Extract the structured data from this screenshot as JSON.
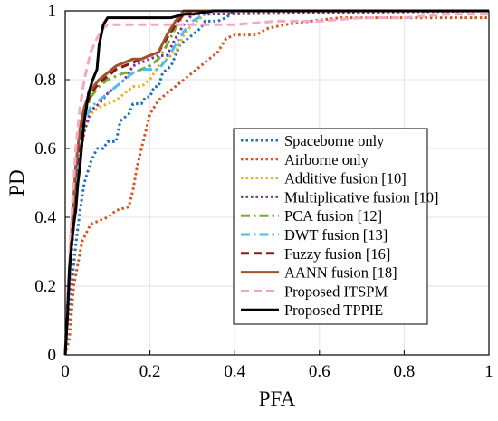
{
  "chart_data": {
    "type": "line",
    "title": "",
    "xlabel": "PFA",
    "ylabel": "PD",
    "xlim": [
      0,
      1
    ],
    "ylim": [
      0,
      1
    ],
    "x_ticks": [
      0,
      0.2,
      0.4,
      0.6,
      0.8,
      1
    ],
    "y_ticks": [
      0,
      0.2,
      0.4,
      0.6,
      0.8,
      1
    ],
    "x_tick_labels": [
      "0",
      "0.2",
      "0.4",
      "0.6",
      "0.8",
      "1"
    ],
    "y_tick_labels": [
      "0",
      "0.2",
      "0.4",
      "0.6",
      "0.8",
      "1"
    ],
    "grid": true,
    "legend_position": "bottom-right",
    "series": [
      {
        "name": "Spaceborne only",
        "color": "#1f6fbf",
        "dash": "dotted",
        "points": [
          [
            0,
            0
          ],
          [
            0.005,
            0.08
          ],
          [
            0.015,
            0.2
          ],
          [
            0.025,
            0.32
          ],
          [
            0.035,
            0.42
          ],
          [
            0.045,
            0.5
          ],
          [
            0.06,
            0.56
          ],
          [
            0.075,
            0.6
          ],
          [
            0.09,
            0.6
          ],
          [
            0.1,
            0.62
          ],
          [
            0.12,
            0.62
          ],
          [
            0.13,
            0.68
          ],
          [
            0.15,
            0.7
          ],
          [
            0.16,
            0.73
          ],
          [
            0.18,
            0.73
          ],
          [
            0.19,
            0.75
          ],
          [
            0.2,
            0.75
          ],
          [
            0.21,
            0.78
          ],
          [
            0.22,
            0.78
          ],
          [
            0.23,
            0.82
          ],
          [
            0.25,
            0.84
          ],
          [
            0.27,
            0.9
          ],
          [
            0.3,
            0.93
          ],
          [
            0.32,
            0.95
          ],
          [
            0.33,
            0.97
          ],
          [
            0.36,
            0.97
          ],
          [
            0.38,
            0.98
          ],
          [
            0.4,
            1
          ],
          [
            1,
            1
          ]
        ]
      },
      {
        "name": "Airborne only",
        "color": "#d95319",
        "dash": "dotted",
        "points": [
          [
            0,
            0
          ],
          [
            0.01,
            0.05
          ],
          [
            0.02,
            0.2
          ],
          [
            0.04,
            0.33
          ],
          [
            0.06,
            0.38
          ],
          [
            0.1,
            0.4
          ],
          [
            0.12,
            0.42
          ],
          [
            0.15,
            0.43
          ],
          [
            0.16,
            0.48
          ],
          [
            0.17,
            0.55
          ],
          [
            0.18,
            0.6
          ],
          [
            0.19,
            0.65
          ],
          [
            0.2,
            0.7
          ],
          [
            0.22,
            0.74
          ],
          [
            0.24,
            0.76
          ],
          [
            0.26,
            0.78
          ],
          [
            0.28,
            0.8
          ],
          [
            0.3,
            0.82
          ],
          [
            0.32,
            0.84
          ],
          [
            0.34,
            0.86
          ],
          [
            0.36,
            0.88
          ],
          [
            0.38,
            0.92
          ],
          [
            0.4,
            0.93
          ],
          [
            0.45,
            0.93
          ],
          [
            0.48,
            0.95
          ],
          [
            0.52,
            0.96
          ],
          [
            0.58,
            0.97
          ],
          [
            0.65,
            0.98
          ],
          [
            1,
            0.98
          ]
        ]
      },
      {
        "name": "Additive fusion [10]",
        "color": "#edb120",
        "dash": "dotted",
        "points": [
          [
            0,
            0
          ],
          [
            0.005,
            0.1
          ],
          [
            0.015,
            0.28
          ],
          [
            0.025,
            0.45
          ],
          [
            0.035,
            0.58
          ],
          [
            0.045,
            0.65
          ],
          [
            0.06,
            0.7
          ],
          [
            0.08,
            0.72
          ],
          [
            0.1,
            0.73
          ],
          [
            0.12,
            0.74
          ],
          [
            0.14,
            0.76
          ],
          [
            0.16,
            0.78
          ],
          [
            0.18,
            0.78
          ],
          [
            0.2,
            0.8
          ],
          [
            0.22,
            0.84
          ],
          [
            0.24,
            0.86
          ],
          [
            0.26,
            0.88
          ],
          [
            0.28,
            0.93
          ],
          [
            0.3,
            0.96
          ],
          [
            0.33,
            0.99
          ],
          [
            1,
            1
          ]
        ]
      },
      {
        "name": "Multiplicative fusion [10]",
        "color": "#7e2f8e",
        "dash": "dotted",
        "points": [
          [
            0,
            0
          ],
          [
            0.005,
            0.1
          ],
          [
            0.015,
            0.3
          ],
          [
            0.025,
            0.47
          ],
          [
            0.035,
            0.58
          ],
          [
            0.045,
            0.65
          ],
          [
            0.06,
            0.71
          ],
          [
            0.08,
            0.73
          ],
          [
            0.1,
            0.76
          ],
          [
            0.12,
            0.78
          ],
          [
            0.14,
            0.8
          ],
          [
            0.16,
            0.84
          ],
          [
            0.18,
            0.85
          ],
          [
            0.2,
            0.86
          ],
          [
            0.22,
            0.87
          ],
          [
            0.24,
            0.87
          ],
          [
            0.26,
            0.92
          ],
          [
            0.28,
            0.96
          ],
          [
            0.3,
            0.99
          ],
          [
            1,
            1
          ]
        ]
      },
      {
        "name": "PCA fusion [12]",
        "color": "#77ac30",
        "dash": "dashdot",
        "points": [
          [
            0,
            0
          ],
          [
            0.005,
            0.12
          ],
          [
            0.015,
            0.32
          ],
          [
            0.025,
            0.5
          ],
          [
            0.035,
            0.62
          ],
          [
            0.045,
            0.7
          ],
          [
            0.06,
            0.75
          ],
          [
            0.08,
            0.78
          ],
          [
            0.1,
            0.8
          ],
          [
            0.12,
            0.81
          ],
          [
            0.14,
            0.82
          ],
          [
            0.16,
            0.82
          ],
          [
            0.18,
            0.83
          ],
          [
            0.2,
            0.84
          ],
          [
            0.22,
            0.86
          ],
          [
            0.24,
            0.9
          ],
          [
            0.26,
            0.95
          ],
          [
            0.28,
            0.99
          ],
          [
            0.3,
            1
          ],
          [
            1,
            1
          ]
        ]
      },
      {
        "name": "DWT fusion [13]",
        "color": "#4dbeee",
        "dash": "dashdot",
        "points": [
          [
            0,
            0
          ],
          [
            0.005,
            0.12
          ],
          [
            0.015,
            0.33
          ],
          [
            0.025,
            0.5
          ],
          [
            0.035,
            0.62
          ],
          [
            0.045,
            0.68
          ],
          [
            0.06,
            0.72
          ],
          [
            0.08,
            0.74
          ],
          [
            0.1,
            0.76
          ],
          [
            0.12,
            0.78
          ],
          [
            0.14,
            0.8
          ],
          [
            0.16,
            0.82
          ],
          [
            0.18,
            0.83
          ],
          [
            0.2,
            0.83
          ],
          [
            0.22,
            0.83
          ],
          [
            0.24,
            0.86
          ],
          [
            0.26,
            0.9
          ],
          [
            0.28,
            0.94
          ],
          [
            0.3,
            0.97
          ],
          [
            0.33,
            0.99
          ],
          [
            0.35,
            1
          ],
          [
            1,
            1
          ]
        ]
      },
      {
        "name": "Fuzzy fusion [16]",
        "color": "#8b1a1a",
        "dash": "dashed",
        "points": [
          [
            0,
            0
          ],
          [
            0.005,
            0.12
          ],
          [
            0.015,
            0.34
          ],
          [
            0.025,
            0.52
          ],
          [
            0.035,
            0.63
          ],
          [
            0.045,
            0.7
          ],
          [
            0.06,
            0.76
          ],
          [
            0.08,
            0.79
          ],
          [
            0.1,
            0.81
          ],
          [
            0.12,
            0.83
          ],
          [
            0.14,
            0.84
          ],
          [
            0.16,
            0.85
          ],
          [
            0.18,
            0.86
          ],
          [
            0.2,
            0.87
          ],
          [
            0.22,
            0.88
          ],
          [
            0.24,
            0.92
          ],
          [
            0.26,
            0.96
          ],
          [
            0.28,
            0.99
          ],
          [
            0.3,
            1
          ],
          [
            1,
            1
          ]
        ]
      },
      {
        "name": "AANN fusion [18]",
        "color": "#a0522d",
        "dash": "solid",
        "points": [
          [
            0,
            0
          ],
          [
            0.005,
            0.14
          ],
          [
            0.015,
            0.36
          ],
          [
            0.025,
            0.55
          ],
          [
            0.035,
            0.66
          ],
          [
            0.045,
            0.72
          ],
          [
            0.06,
            0.77
          ],
          [
            0.08,
            0.8
          ],
          [
            0.1,
            0.82
          ],
          [
            0.12,
            0.84
          ],
          [
            0.14,
            0.85
          ],
          [
            0.16,
            0.86
          ],
          [
            0.18,
            0.86
          ],
          [
            0.2,
            0.87
          ],
          [
            0.22,
            0.88
          ],
          [
            0.24,
            0.93
          ],
          [
            0.26,
            0.97
          ],
          [
            0.28,
            1
          ],
          [
            1,
            1
          ]
        ]
      },
      {
        "name": "Proposed ITSPM",
        "color": "#f4a6c8",
        "dash": "dashed",
        "points": [
          [
            0,
            0
          ],
          [
            0.005,
            0.15
          ],
          [
            0.015,
            0.4
          ],
          [
            0.025,
            0.6
          ],
          [
            0.035,
            0.72
          ],
          [
            0.045,
            0.8
          ],
          [
            0.06,
            0.88
          ],
          [
            0.075,
            0.92
          ],
          [
            0.09,
            0.95
          ],
          [
            0.1,
            0.96
          ],
          [
            0.12,
            0.96
          ],
          [
            0.2,
            0.96
          ],
          [
            0.3,
            0.96
          ],
          [
            0.4,
            0.96
          ],
          [
            0.5,
            0.97
          ],
          [
            0.6,
            0.97
          ],
          [
            0.7,
            0.98
          ],
          [
            0.8,
            0.98
          ],
          [
            0.9,
            0.99
          ],
          [
            1,
            0.99
          ]
        ]
      },
      {
        "name": "Proposed TPPIE",
        "color": "#000000",
        "dash": "solid",
        "points": [
          [
            0,
            0
          ],
          [
            0.005,
            0.1
          ],
          [
            0.01,
            0.25
          ],
          [
            0.015,
            0.32
          ],
          [
            0.02,
            0.38
          ],
          [
            0.025,
            0.42
          ],
          [
            0.03,
            0.5
          ],
          [
            0.035,
            0.55
          ],
          [
            0.04,
            0.62
          ],
          [
            0.045,
            0.68
          ],
          [
            0.05,
            0.72
          ],
          [
            0.055,
            0.76
          ],
          [
            0.06,
            0.78
          ],
          [
            0.065,
            0.8
          ],
          [
            0.075,
            0.83
          ],
          [
            0.08,
            0.9
          ],
          [
            0.09,
            0.96
          ],
          [
            0.1,
            0.98
          ],
          [
            0.15,
            0.98
          ],
          [
            0.2,
            0.98
          ],
          [
            0.25,
            0.98
          ],
          [
            0.28,
            0.99
          ],
          [
            0.3,
            0.99
          ],
          [
            0.35,
            1
          ],
          [
            1,
            1
          ]
        ]
      }
    ]
  }
}
